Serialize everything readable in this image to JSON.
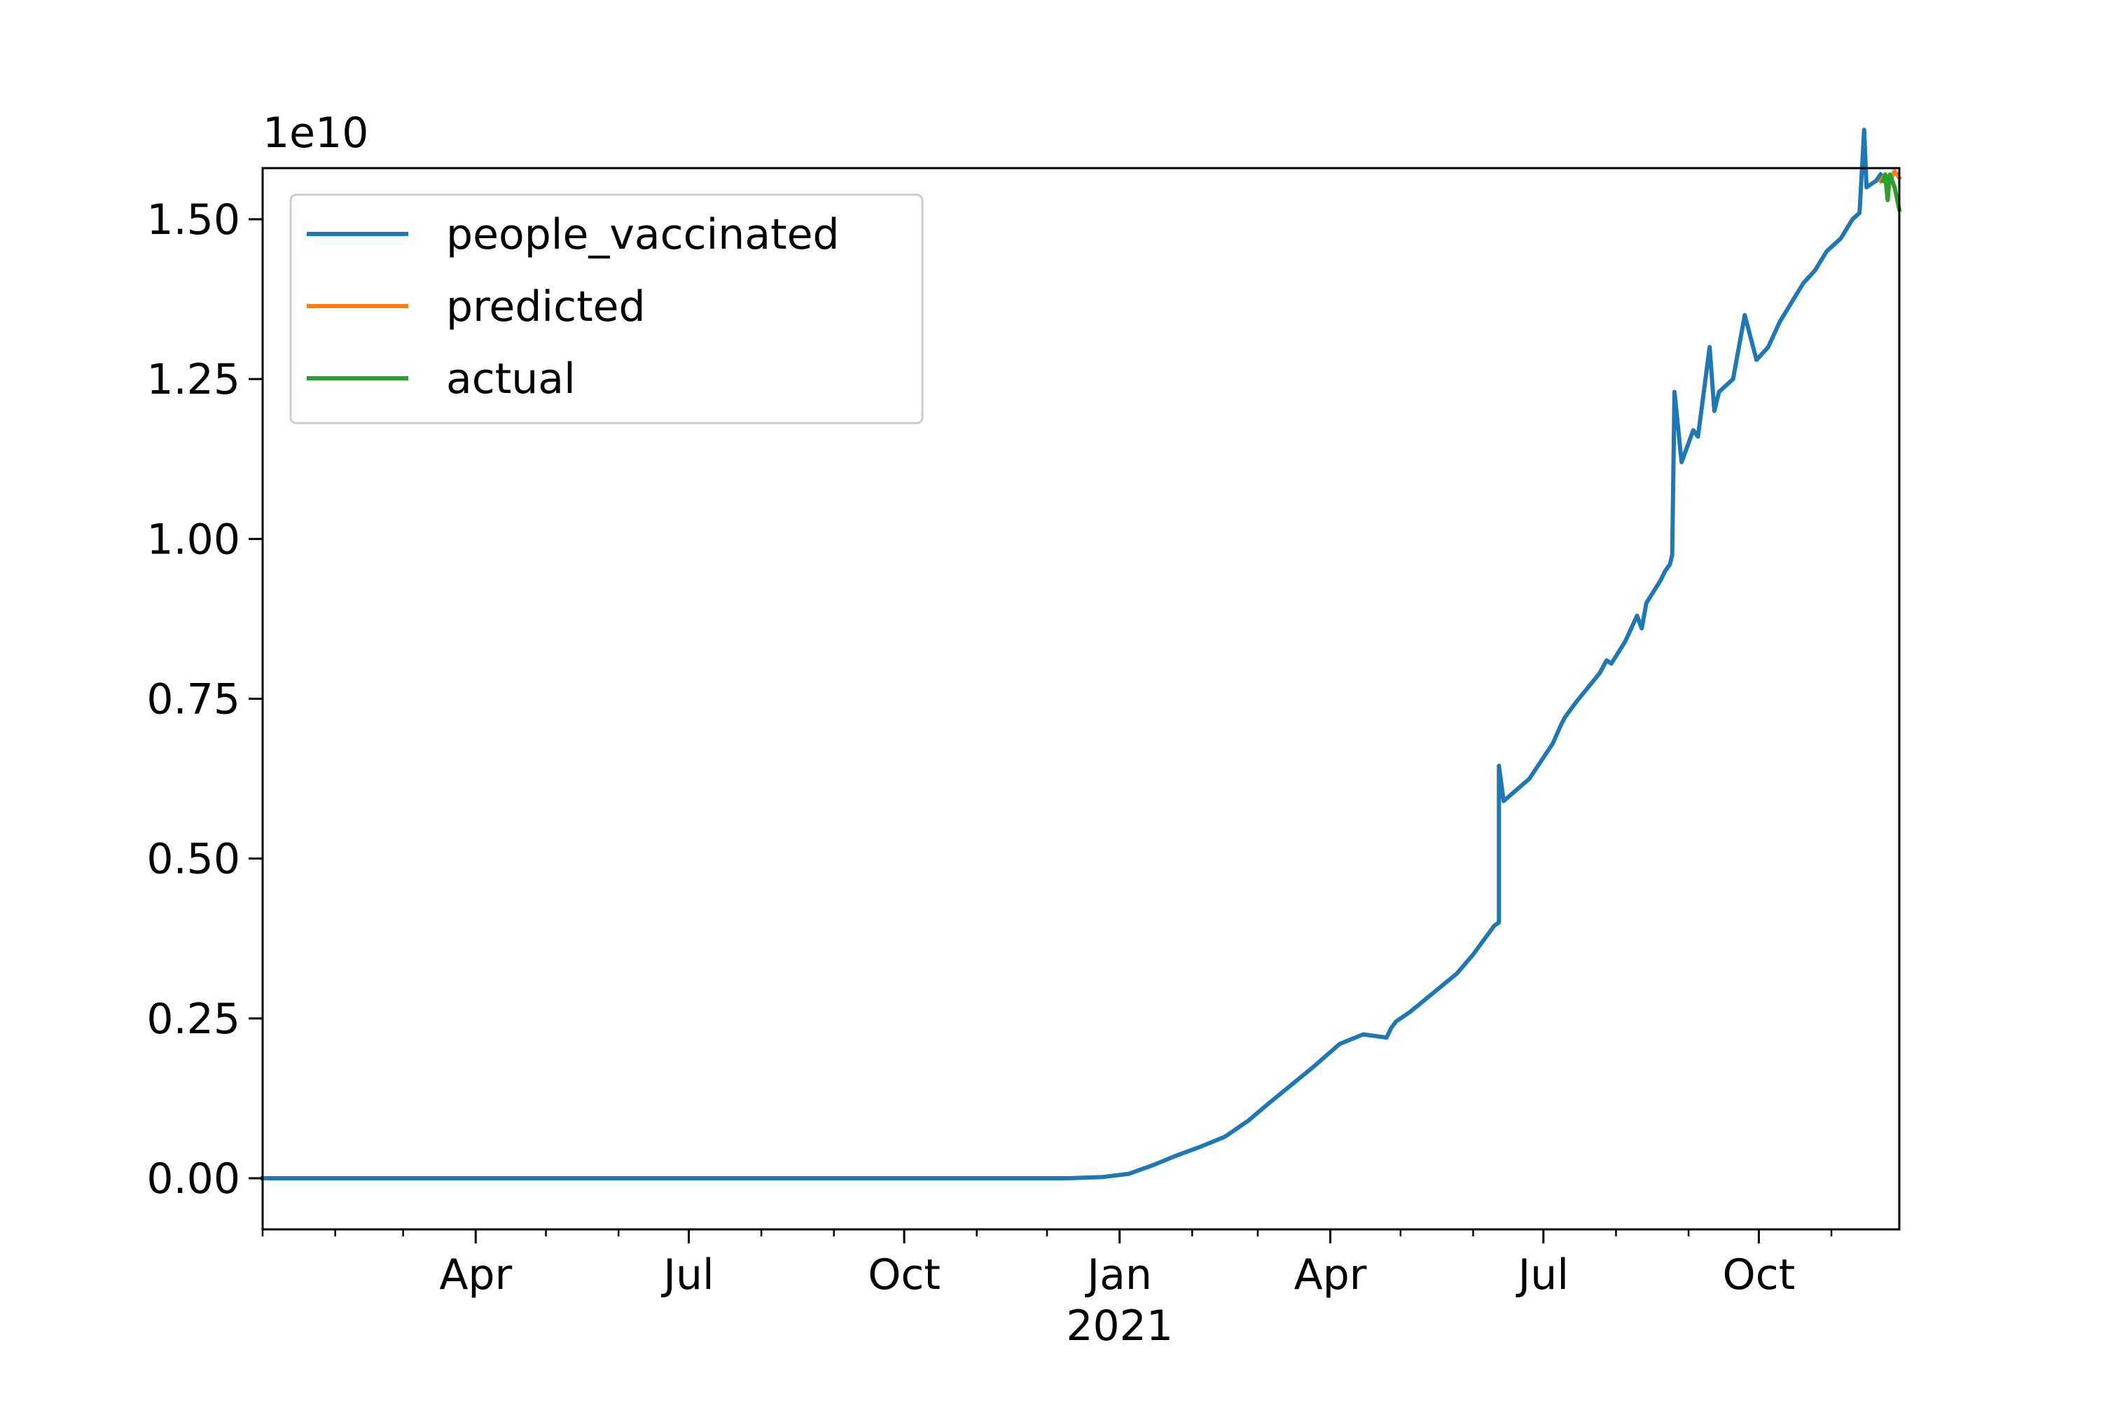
{
  "chart_data": {
    "type": "line",
    "title": "",
    "xlabel": "",
    "ylabel": "",
    "y_scale_label": "1e10",
    "y_scale_factor": 10000000000,
    "xlim": [
      "2020-01-01",
      "2021-11-30"
    ],
    "ylim": [
      -0.08,
      1.58
    ],
    "x_axis_year_label": "2021",
    "x_ticks": [
      {
        "date": "2020-04-01",
        "label": "Apr"
      },
      {
        "date": "2020-07-01",
        "label": "Jul"
      },
      {
        "date": "2020-10-01",
        "label": "Oct"
      },
      {
        "date": "2021-01-01",
        "label": "Jan"
      },
      {
        "date": "2021-04-01",
        "label": "Apr"
      },
      {
        "date": "2021-07-01",
        "label": "Jul"
      },
      {
        "date": "2021-10-01",
        "label": "Oct"
      }
    ],
    "y_ticks": [
      {
        "value": 0.0,
        "label": "0.00"
      },
      {
        "value": 0.25,
        "label": "0.25"
      },
      {
        "value": 0.5,
        "label": "0.50"
      },
      {
        "value": 0.75,
        "label": "0.75"
      },
      {
        "value": 1.0,
        "label": "1.00"
      },
      {
        "value": 1.25,
        "label": "1.25"
      },
      {
        "value": 1.5,
        "label": "1.50"
      }
    ],
    "grid": false,
    "legend_position": "top-left",
    "series": [
      {
        "name": "people_vaccinated",
        "color": "#1f77b4",
        "x": [
          "2020-01-01",
          "2020-12-10",
          "2020-12-25",
          "2021-01-05",
          "2021-01-15",
          "2021-01-25",
          "2021-02-05",
          "2021-02-15",
          "2021-02-25",
          "2021-03-05",
          "2021-03-15",
          "2021-03-25",
          "2021-04-05",
          "2021-04-15",
          "2021-04-25",
          "2021-04-27",
          "2021-04-29",
          "2021-05-05",
          "2021-05-15",
          "2021-05-25",
          "2021-06-01",
          "2021-06-03",
          "2021-06-05",
          "2021-06-10",
          "2021-06-12",
          "2021-06-12",
          "2021-06-14",
          "2021-06-25",
          "2021-07-05",
          "2021-07-08",
          "2021-07-10",
          "2021-07-15",
          "2021-07-25",
          "2021-07-28",
          "2021-07-30",
          "2021-08-05",
          "2021-08-10",
          "2021-08-12",
          "2021-08-14",
          "2021-08-20",
          "2021-08-22",
          "2021-08-24",
          "2021-08-25",
          "2021-08-26",
          "2021-08-29",
          "2021-09-01",
          "2021-09-03",
          "2021-09-05",
          "2021-09-10",
          "2021-09-12",
          "2021-09-14",
          "2021-09-20",
          "2021-09-25",
          "2021-09-30",
          "2021-10-05",
          "2021-10-10",
          "2021-10-15",
          "2021-10-20",
          "2021-10-25",
          "2021-10-30",
          "2021-11-05",
          "2021-11-10",
          "2021-11-13",
          "2021-11-15",
          "2021-11-16",
          "2021-11-20",
          "2021-11-22"
        ],
        "y": [
          0.0,
          0.0,
          0.002,
          0.007,
          0.02,
          0.035,
          0.05,
          0.065,
          0.09,
          0.115,
          0.145,
          0.175,
          0.21,
          0.225,
          0.22,
          0.235,
          0.245,
          0.26,
          0.29,
          0.32,
          0.35,
          0.36,
          0.37,
          0.395,
          0.4,
          0.645,
          0.59,
          0.625,
          0.68,
          0.705,
          0.72,
          0.745,
          0.79,
          0.81,
          0.805,
          0.84,
          0.88,
          0.86,
          0.9,
          0.935,
          0.95,
          0.96,
          0.975,
          1.23,
          1.12,
          1.15,
          1.17,
          1.16,
          1.3,
          1.2,
          1.23,
          1.25,
          1.35,
          1.28,
          1.3,
          1.34,
          1.37,
          1.4,
          1.42,
          1.45,
          1.47,
          1.5,
          1.51,
          1.64,
          1.55,
          1.56,
          1.57
        ]
      },
      {
        "name": "predicted",
        "color": "#ff7f0e",
        "x": [
          "2021-11-22",
          "2021-11-24",
          "2021-11-26",
          "2021-11-28",
          "2021-11-30"
        ],
        "y": [
          1.56,
          1.57,
          1.56,
          1.575,
          1.565
        ]
      },
      {
        "name": "actual",
        "color": "#2ca02c",
        "x": [
          "2021-11-23",
          "2021-11-24",
          "2021-11-25",
          "2021-11-26",
          "2021-11-28",
          "2021-11-30"
        ],
        "y": [
          1.56,
          1.57,
          1.53,
          1.57,
          1.55,
          1.515
        ]
      }
    ]
  }
}
